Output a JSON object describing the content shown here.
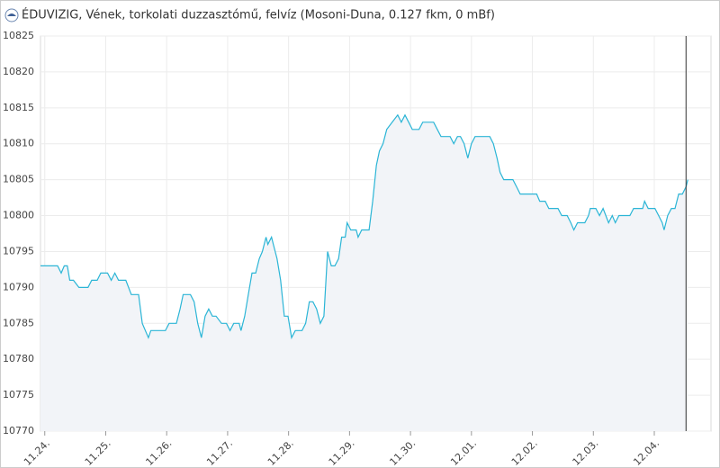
{
  "chart_data": {
    "type": "line",
    "title": "ÉDUVIZIG, Vének, torkolati duzzasztómű, felvíz (Mosoni-Duna, 0.127 fkm, 0 mBf)",
    "color": "#2bb5d6",
    "fill_color": "#f2f4f8",
    "grid": true,
    "xlim": [
      -0.07,
      10.93
    ],
    "xticks": [
      {
        "value": 0,
        "label": "11.24."
      },
      {
        "value": 1,
        "label": "11.25."
      },
      {
        "value": 2,
        "label": "11.26."
      },
      {
        "value": 3,
        "label": "11.27."
      },
      {
        "value": 4,
        "label": "11.28."
      },
      {
        "value": 5,
        "label": "11.29."
      },
      {
        "value": 6,
        "label": "11.30."
      },
      {
        "value": 7,
        "label": "12.01."
      },
      {
        "value": 8,
        "label": "12.02."
      },
      {
        "value": 9,
        "label": "12.03."
      },
      {
        "value": 10,
        "label": "12.04."
      }
    ],
    "ylim": [
      10770,
      10825
    ],
    "yticks": [
      10770,
      10775,
      10780,
      10785,
      10790,
      10795,
      10800,
      10805,
      10810,
      10815,
      10820,
      10825
    ],
    "x": [
      -0.07,
      0.21,
      0.27,
      0.32,
      0.37,
      0.41,
      0.47,
      0.56,
      0.71,
      0.77,
      0.86,
      0.92,
      1.03,
      1.09,
      1.15,
      1.21,
      1.33,
      1.42,
      1.54,
      1.6,
      1.7,
      1.74,
      1.98,
      2.04,
      2.16,
      2.22,
      2.27,
      2.39,
      2.45,
      2.51,
      2.57,
      2.63,
      2.69,
      2.75,
      2.81,
      2.9,
      2.98,
      3.04,
      3.1,
      3.19,
      3.22,
      3.28,
      3.34,
      3.4,
      3.46,
      3.52,
      3.57,
      3.63,
      3.66,
      3.72,
      3.75,
      3.81,
      3.87,
      3.93,
      3.99,
      4.05,
      4.11,
      4.22,
      4.28,
      4.34,
      4.4,
      4.46,
      4.52,
      4.58,
      4.64,
      4.7,
      4.76,
      4.82,
      4.87,
      4.93,
      4.96,
      5.02,
      5.11,
      5.14,
      5.2,
      5.32,
      5.38,
      5.44,
      5.49,
      5.55,
      5.61,
      5.7,
      5.79,
      5.85,
      5.91,
      5.97,
      6.03,
      6.14,
      6.2,
      6.38,
      6.44,
      6.5,
      6.65,
      6.71,
      6.77,
      6.82,
      6.88,
      6.94,
      7.0,
      7.06,
      7.3,
      7.36,
      7.42,
      7.47,
      7.53,
      7.68,
      7.74,
      7.8,
      8.07,
      8.12,
      8.21,
      8.27,
      8.42,
      8.48,
      8.57,
      8.63,
      8.68,
      8.74,
      8.86,
      8.92,
      8.95,
      9.04,
      9.1,
      9.16,
      9.25,
      9.31,
      9.36,
      9.42,
      9.6,
      9.66,
      9.81,
      9.84,
      9.9,
      10.01,
      10.07,
      10.13,
      10.16,
      10.22,
      10.28,
      10.34,
      10.4,
      10.46,
      10.52,
      10.55
    ],
    "values": [
      10793,
      10793,
      10792,
      10793,
      10793,
      10791,
      10791,
      10790,
      10790,
      10791,
      10791,
      10792,
      10792,
      10791,
      10792,
      10791,
      10791,
      10789,
      10789,
      10785,
      10783,
      10784,
      10784,
      10785,
      10785,
      10787,
      10789,
      10789,
      10788,
      10785,
      10783,
      10786,
      10787,
      10786,
      10786,
      10785,
      10785,
      10784,
      10785,
      10785,
      10784,
      10786,
      10789,
      10792,
      10792,
      10794,
      10795,
      10797,
      10796,
      10797,
      10796,
      10794,
      10791,
      10786,
      10786,
      10783,
      10784,
      10784,
      10785,
      10788,
      10788,
      10787,
      10785,
      10786,
      10795,
      10793,
      10793,
      10794,
      10797,
      10797,
      10799,
      10798,
      10798,
      10797,
      10798,
      10798,
      10802,
      10807,
      10809,
      10810,
      10812,
      10813,
      10814,
      10813,
      10814,
      10813,
      10812,
      10812,
      10813,
      10813,
      10812,
      10811,
      10811,
      10810,
      10811,
      10811,
      10810,
      10808,
      10810,
      10811,
      10811,
      10810,
      10808,
      10806,
      10805,
      10805,
      10804,
      10803,
      10803,
      10802,
      10802,
      10801,
      10801,
      10800,
      10800,
      10799,
      10798,
      10799,
      10799,
      10800,
      10801,
      10801,
      10800,
      10801,
      10799,
      10800,
      10799,
      10800,
      10800,
      10801,
      10801,
      10802,
      10801,
      10801,
      10800,
      10799,
      10798,
      10800,
      10801,
      10801,
      10803,
      10803,
      10804,
      10805
    ]
  }
}
